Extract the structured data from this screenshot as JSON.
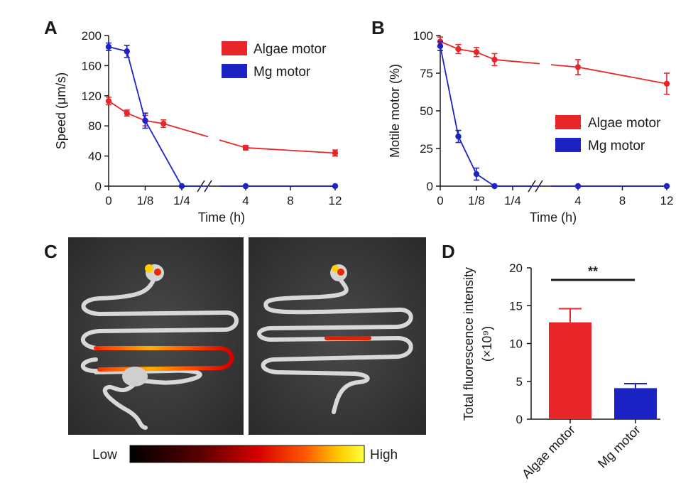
{
  "panels": {
    "a": "A",
    "b": "B",
    "c": "C",
    "d": "D"
  },
  "colors": {
    "algae": "#e8262a",
    "mg": "#1c23c4",
    "axis": "#1a1a1a"
  },
  "chart_data": [
    {
      "panel": "A",
      "type": "line",
      "xlabel": "Time (h)",
      "ylabel": "Speed (μm/s)",
      "ylim": [
        0,
        200
      ],
      "yticks": [
        "0",
        "40",
        "80",
        "120",
        "160",
        "200"
      ],
      "xticks": [
        "0",
        "1/8",
        "1/4",
        "4",
        "8",
        "12"
      ],
      "axis_break": "between 1/4 and 4",
      "legend": [
        "Algae motor",
        "Mg motor"
      ],
      "legend_position": "top-right",
      "series": [
        {
          "name": "Algae motor",
          "x": [
            "0",
            "1/16",
            "1/8",
            "3/16",
            "4",
            "12"
          ],
          "values": [
            113,
            97,
            87,
            83,
            51,
            44
          ],
          "errors": [
            5,
            4,
            7,
            5,
            3,
            4
          ]
        },
        {
          "name": "Mg motor",
          "x": [
            "0",
            "1/16",
            "1/8",
            "1/4",
            "4",
            "12"
          ],
          "values": [
            185,
            179,
            87,
            0,
            0,
            0
          ],
          "errors": [
            5,
            8,
            10,
            0,
            0,
            0
          ]
        }
      ]
    },
    {
      "panel": "B",
      "type": "line",
      "xlabel": "Time (h)",
      "ylabel": "Motile motor (%)",
      "ylim": [
        0,
        100
      ],
      "yticks": [
        "0",
        "25",
        "50",
        "75",
        "100"
      ],
      "xticks": [
        "0",
        "1/8",
        "1/4",
        "4",
        "8",
        "12"
      ],
      "axis_break": "between 1/4 and 4",
      "legend": [
        "Algae motor",
        "Mg motor"
      ],
      "legend_position": "center-right",
      "series": [
        {
          "name": "Algae motor",
          "x": [
            "0",
            "1/16",
            "1/8",
            "3/16",
            "4",
            "12"
          ],
          "values": [
            96,
            91,
            89,
            84,
            79,
            68
          ],
          "errors": [
            3,
            3,
            3,
            4,
            5,
            7
          ]
        },
        {
          "name": "Mg motor",
          "x": [
            "0",
            "1/16",
            "1/8",
            "3/16",
            "4",
            "12"
          ],
          "values": [
            93,
            33,
            8,
            0,
            0,
            0
          ],
          "errors": [
            3,
            4,
            4,
            0,
            0,
            0
          ]
        }
      ]
    },
    {
      "panel": "D",
      "type": "bar",
      "ylabel": "Total fluorescence intensity",
      "ylabel2": "(×10⁹)",
      "ylim": [
        0,
        20
      ],
      "yticks": [
        "0",
        "5",
        "10",
        "15",
        "20"
      ],
      "categories": [
        "Algae motor",
        "Mg motor"
      ],
      "values": [
        12.8,
        4.1
      ],
      "errors": [
        1.8,
        0.6
      ],
      "significance": "**"
    }
  ],
  "colorbar": {
    "low": "Low",
    "high": "High"
  }
}
